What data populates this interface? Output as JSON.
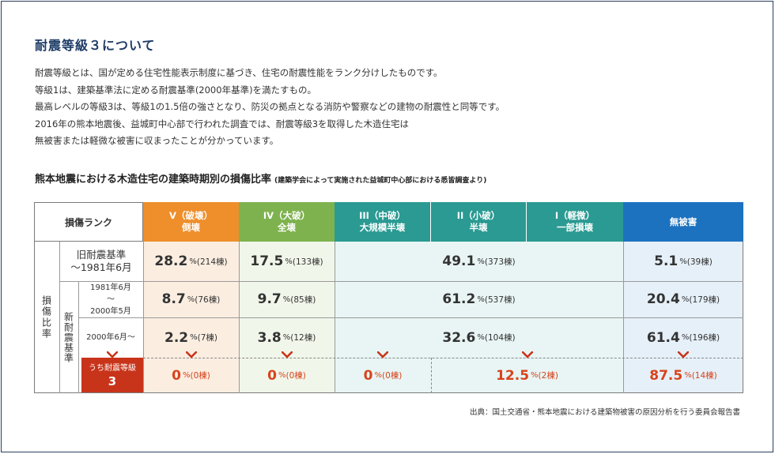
{
  "heading": "耐震等級３について",
  "paragraph": [
    "耐震等級とは、国が定める住宅性能表示制度に基づき、住宅の耐震性能をランク分けしたものです。",
    "等級1は、建築基準法に定める耐震基準(2000年基準)を満たすもの。",
    "最高レベルの等級3は、等級1の1.5倍の強さとなり、防災の拠点となる消防や警察などの建物の耐震性と同等です。",
    "2016年の熊本地震後、益城町中心部で行われた調査では、耐震等級3を取得した木造住宅は",
    "無被害または軽微な被害に収まったことが分かっています。"
  ],
  "table_title": "熊本地震における木造住宅の建築時期別の損傷比率",
  "table_note": "(建築学会によって実施された益城町中心部における悉皆調査より)",
  "colors": {
    "v": "#ee8f2c",
    "iv": "#7eb24f",
    "mid": "#2a9a92",
    "none": "#1d72c0",
    "grade3": "#c8341a"
  },
  "table": {
    "rank_header": "損傷ランク",
    "headers": {
      "v": [
        "V（破壊）",
        "倒壊"
      ],
      "iv": [
        "IV（大破）",
        "全壊"
      ],
      "iii": [
        "III（中破）",
        "大規模半壊"
      ],
      "ii": [
        "II（小破）",
        "半壊"
      ],
      "i": [
        "I（軽微）",
        "一部損壊"
      ],
      "none": [
        "無被害"
      ]
    },
    "side_label": "損傷比率",
    "new_label": "新耐震基準",
    "rows": {
      "old": {
        "label": [
          "旧耐震基準",
          "～1981年6月"
        ],
        "v": {
          "pct": "28.2",
          "count": "(214棟)"
        },
        "iv": {
          "pct": "17.5",
          "count": "(133棟)"
        },
        "mid": {
          "pct": "49.1",
          "count": "(373棟)"
        },
        "none": {
          "pct": "5.1",
          "count": "(39棟)"
        }
      },
      "new1": {
        "label": [
          "1981年6月",
          "～",
          "2000年5月"
        ],
        "v": {
          "pct": "8.7",
          "count": "(76棟)"
        },
        "iv": {
          "pct": "9.7",
          "count": "(85棟)"
        },
        "mid": {
          "pct": "61.2",
          "count": "(537棟)"
        },
        "none": {
          "pct": "20.4",
          "count": "(179棟)"
        }
      },
      "new2": {
        "label": [
          "2000年6月～"
        ],
        "v": {
          "pct": "2.2",
          "count": "(7棟)"
        },
        "iv": {
          "pct": "3.8",
          "count": "(12棟)"
        },
        "mid": {
          "pct": "32.6",
          "count": "(104棟)"
        },
        "none": {
          "pct": "61.4",
          "count": "(196棟)"
        }
      },
      "grade3": {
        "label_top": "うち耐震等級",
        "label_num": "3",
        "v": {
          "pct": "0",
          "count": "(0棟)"
        },
        "iv": {
          "pct": "0",
          "count": "(0棟)"
        },
        "iii": {
          "pct": "0",
          "count": "(0棟)"
        },
        "ii_i": {
          "pct": "12.5",
          "count": "(2棟)"
        },
        "none": {
          "pct": "87.5",
          "count": "(14棟)"
        }
      }
    },
    "unit": "%"
  },
  "source": "出典：国土交通省・熊本地震における建築物被害の原因分析を行う委員会報告書"
}
